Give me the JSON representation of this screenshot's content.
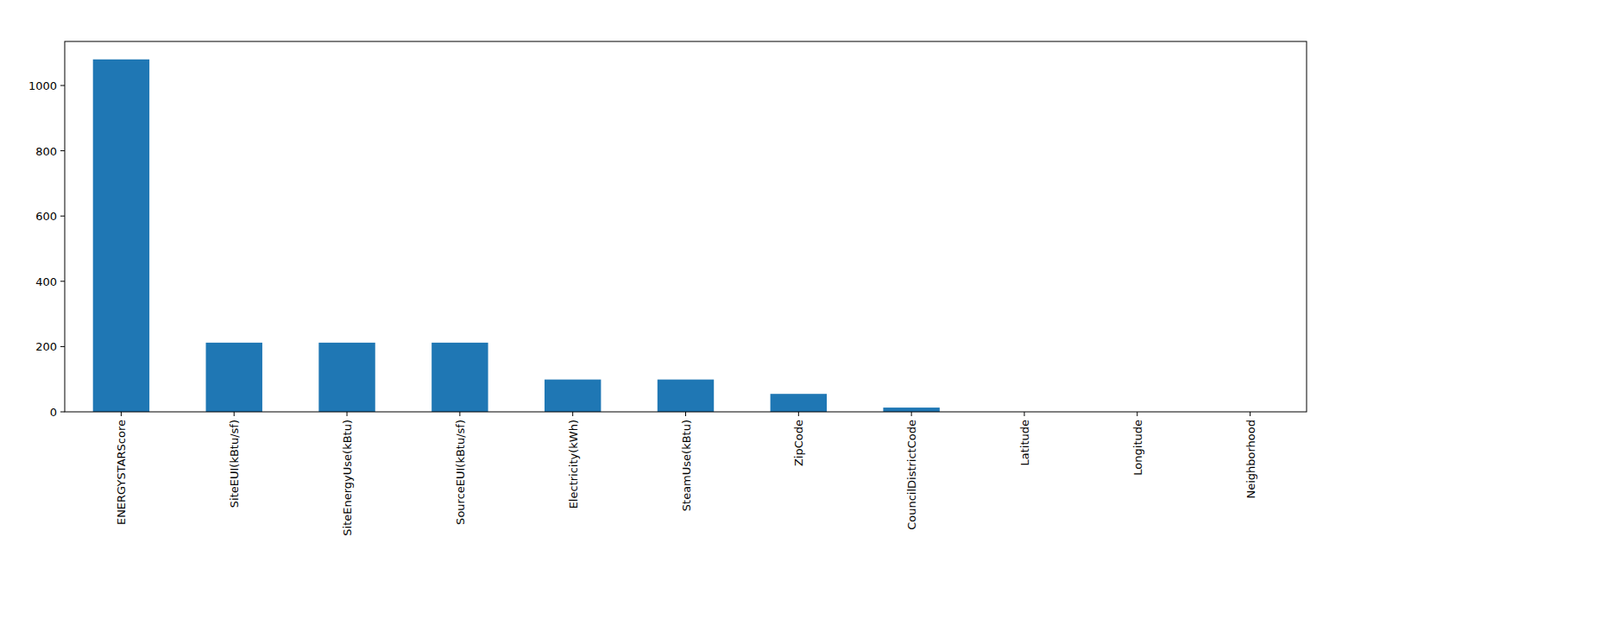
{
  "chart_data": {
    "type": "bar",
    "categories": [
      "ENERGYSTARScore",
      "SiteEUI(kBtu/sf)",
      "SiteEnergyUse(kBtu)",
      "SourceEUI(kBtu/sf)",
      "Electricity(kWh)",
      "SteamUse(kBtu)",
      "ZipCode",
      "CouncilDistrictCode",
      "Latitude",
      "Longitude",
      "Neighborhood"
    ],
    "values": [
      1080,
      212,
      212,
      212,
      99,
      99,
      55,
      13,
      0,
      0,
      0
    ],
    "color": "#1f77b4",
    "ylim": [
      0,
      1135
    ],
    "yticks": [
      0,
      200,
      400,
      600,
      800,
      1000
    ],
    "grid": false
  }
}
